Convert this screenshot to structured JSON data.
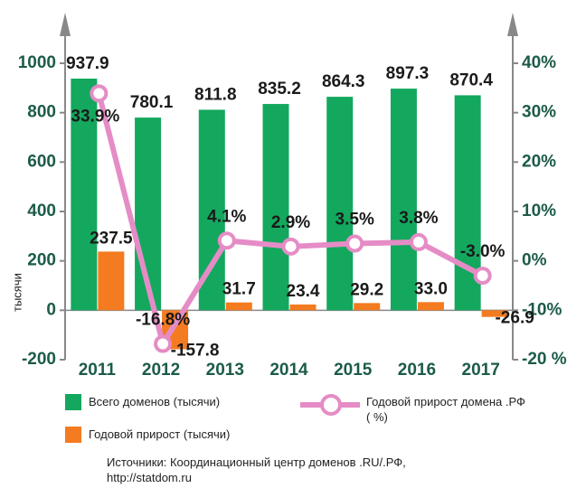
{
  "chart_data": {
    "type": "bar",
    "y_label": "тысячи",
    "categories": [
      "2011",
      "2012",
      "2013",
      "2014",
      "2015",
      "2016",
      "2017"
    ],
    "series": [
      {
        "name": "Всего доменов (тысячи)",
        "type": "bar",
        "color": "#13a85e",
        "values": [
          937.9,
          780.1,
          811.8,
          835.2,
          864.3,
          897.3,
          870.4
        ],
        "value_labels": [
          "937.9",
          "780.1",
          "811.8",
          "835.2",
          "864.3",
          "897.3",
          "870.4"
        ]
      },
      {
        "name": "Годовой прирост (тысячи)",
        "type": "bar",
        "color": "#f47b20",
        "values": [
          237.5,
          -157.8,
          31.7,
          23.4,
          29.2,
          33.0,
          -26.9
        ],
        "value_labels": [
          "237.5",
          "-157.8",
          "31.7",
          "23.4",
          "29.2",
          "33.0",
          "-26.9"
        ]
      },
      {
        "name": "Годовой прирост домена .РФ ( %)",
        "type": "line",
        "axis": "y2",
        "color": "#e58cc6",
        "values": [
          33.9,
          -16.8,
          4.1,
          2.9,
          3.5,
          3.8,
          -3.0
        ],
        "value_labels": [
          "33.9%",
          "-16.8%",
          "4.1%",
          "2.9%",
          "3.5%",
          "3.8%",
          "-3.0%"
        ]
      }
    ],
    "ylim": [
      -200,
      1000
    ],
    "yticks": [
      -200,
      0,
      200,
      400,
      600,
      800,
      1000
    ],
    "y2lim": [
      -20,
      40
    ],
    "y2ticks": [
      {
        "value": -20,
        "label": "-20 %"
      },
      {
        "value": -10,
        "label": "-10%"
      },
      {
        "value": 0,
        "label": "0%"
      },
      {
        "value": 10,
        "label": "10%"
      },
      {
        "value": 20,
        "label": "20%"
      },
      {
        "value": 30,
        "label": "30%"
      },
      {
        "value": 40,
        "label": "40%"
      }
    ],
    "source": [
      "Источники: Координационный центр доменов .RU/.РФ,",
      "http://statdom.ru"
    ]
  }
}
